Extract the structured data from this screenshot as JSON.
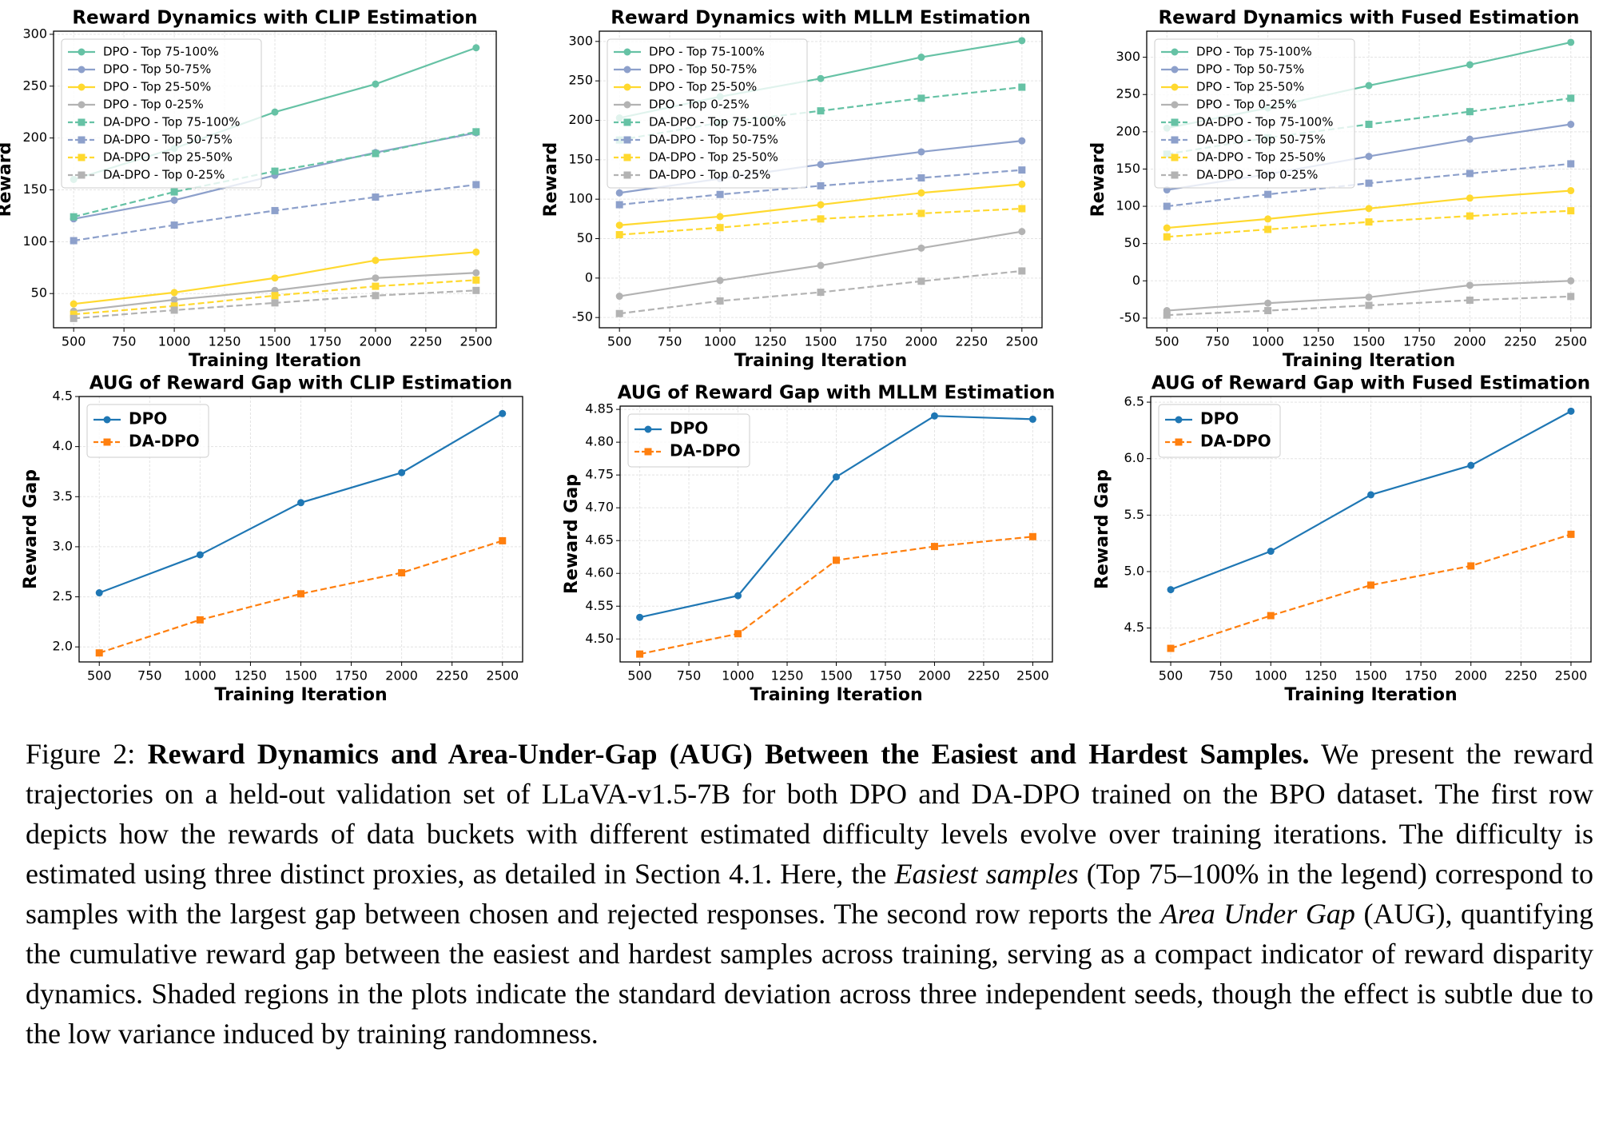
{
  "chart_data": [
    {
      "type": "line",
      "title": "Reward Dynamics with CLIP Estimation",
      "xlabel": "Training Iteration",
      "ylabel": "Reward",
      "x": [
        500,
        1000,
        1500,
        2000,
        2500
      ],
      "xlim": [
        400,
        2600
      ],
      "xticks": [
        500,
        750,
        1000,
        1250,
        1500,
        1750,
        2000,
        2250,
        2500
      ],
      "ylim": [
        17,
        303
      ],
      "yticks": [
        50,
        100,
        150,
        200,
        250,
        300
      ],
      "grid": true,
      "legend": "upper left",
      "series": [
        {
          "name": "DPO - Top 75-100%",
          "color": "#66c2a5",
          "linestyle": "solid",
          "marker": "circle",
          "values": [
            160,
            190,
            225,
            252,
            287
          ]
        },
        {
          "name": "DPO - Top 50-75%",
          "color": "#8da0cb",
          "linestyle": "solid",
          "marker": "circle",
          "values": [
            122,
            140,
            164,
            186,
            205
          ]
        },
        {
          "name": "DPO - Top 25-50%",
          "color": "#ffd92f",
          "linestyle": "solid",
          "marker": "circle",
          "values": [
            40,
            51,
            65,
            82,
            90
          ]
        },
        {
          "name": "DPO - Top 0-25%",
          "color": "#b3b3b3",
          "linestyle": "solid",
          "marker": "circle",
          "values": [
            33,
            44,
            53,
            65,
            70
          ]
        },
        {
          "name": "DA-DPO - Top 75-100%",
          "color": "#66c2a5",
          "linestyle": "dashed",
          "marker": "square",
          "values": [
            124,
            148,
            168,
            185,
            206
          ]
        },
        {
          "name": "DA-DPO - Top 50-75%",
          "color": "#8da0cb",
          "linestyle": "dashed",
          "marker": "square",
          "values": [
            101,
            116,
            130,
            143,
            155
          ]
        },
        {
          "name": "DA-DPO - Top 25-50%",
          "color": "#ffd92f",
          "linestyle": "dashed",
          "marker": "square",
          "values": [
            30,
            38,
            48,
            57,
            63
          ]
        },
        {
          "name": "DA-DPO - Top 0-25%",
          "color": "#b3b3b3",
          "linestyle": "dashed",
          "marker": "square",
          "values": [
            26,
            34,
            41,
            48,
            53
          ]
        }
      ]
    },
    {
      "type": "line",
      "title": "Reward Dynamics with MLLM Estimation",
      "xlabel": "Training Iteration",
      "ylabel": "Reward",
      "x": [
        500,
        1000,
        1500,
        2000,
        2500
      ],
      "xlim": [
        400,
        2600
      ],
      "xticks": [
        500,
        750,
        1000,
        1250,
        1500,
        1750,
        2000,
        2250,
        2500
      ],
      "ylim": [
        -63,
        313
      ],
      "yticks": [
        -50,
        0,
        50,
        100,
        150,
        200,
        250,
        300
      ],
      "grid": true,
      "legend": "upper left",
      "series": [
        {
          "name": "DPO - Top 75-100%",
          "color": "#66c2a5",
          "linestyle": "solid",
          "marker": "circle",
          "values": [
            203,
            230,
            253,
            280,
            301
          ]
        },
        {
          "name": "DPO - Top 50-75%",
          "color": "#8da0cb",
          "linestyle": "solid",
          "marker": "circle",
          "values": [
            108,
            126,
            144,
            160,
            174
          ]
        },
        {
          "name": "DPO - Top 25-50%",
          "color": "#ffd92f",
          "linestyle": "solid",
          "marker": "circle",
          "values": [
            67,
            78,
            93,
            108,
            119
          ]
        },
        {
          "name": "DPO - Top 0-25%",
          "color": "#b3b3b3",
          "linestyle": "solid",
          "marker": "circle",
          "values": [
            -23,
            -3,
            16,
            38,
            59
          ]
        },
        {
          "name": "DA-DPO - Top 75-100%",
          "color": "#66c2a5",
          "linestyle": "dashed",
          "marker": "square",
          "values": [
            175,
            197,
            212,
            228,
            242
          ]
        },
        {
          "name": "DA-DPO - Top 50-75%",
          "color": "#8da0cb",
          "linestyle": "dashed",
          "marker": "square",
          "values": [
            93,
            106,
            117,
            127,
            137
          ]
        },
        {
          "name": "DA-DPO - Top 25-50%",
          "color": "#ffd92f",
          "linestyle": "dashed",
          "marker": "square",
          "values": [
            55,
            64,
            75,
            82,
            88
          ]
        },
        {
          "name": "DA-DPO - Top 0-25%",
          "color": "#b3b3b3",
          "linestyle": "dashed",
          "marker": "square",
          "values": [
            -45,
            -29,
            -18,
            -4,
            9
          ]
        }
      ]
    },
    {
      "type": "line",
      "title": "Reward Dynamics with Fused Estimation",
      "xlabel": "Training Iteration",
      "ylabel": "Reward",
      "x": [
        500,
        1000,
        1500,
        2000,
        2500
      ],
      "xlim": [
        400,
        2600
      ],
      "xticks": [
        500,
        750,
        1000,
        1250,
        1500,
        1750,
        2000,
        2250,
        2500
      ],
      "ylim": [
        -63,
        335
      ],
      "yticks": [
        -50,
        0,
        50,
        100,
        150,
        200,
        250,
        300
      ],
      "grid": true,
      "legend": "upper left",
      "series": [
        {
          "name": "DPO - Top 75-100%",
          "color": "#66c2a5",
          "linestyle": "solid",
          "marker": "circle",
          "values": [
            205,
            232,
            262,
            290,
            320
          ]
        },
        {
          "name": "DPO - Top 50-75%",
          "color": "#8da0cb",
          "linestyle": "solid",
          "marker": "circle",
          "values": [
            122,
            143,
            167,
            190,
            210
          ]
        },
        {
          "name": "DPO - Top 25-50%",
          "color": "#ffd92f",
          "linestyle": "solid",
          "marker": "circle",
          "values": [
            71,
            83,
            97,
            111,
            121
          ]
        },
        {
          "name": "DPO - Top 0-25%",
          "color": "#b3b3b3",
          "linestyle": "solid",
          "marker": "circle",
          "values": [
            -40,
            -30,
            -22,
            -6,
            0
          ]
        },
        {
          "name": "DA-DPO - Top 75-100%",
          "color": "#66c2a5",
          "linestyle": "dashed",
          "marker": "square",
          "values": [
            170,
            192,
            210,
            227,
            245
          ]
        },
        {
          "name": "DA-DPO - Top 50-75%",
          "color": "#8da0cb",
          "linestyle": "dashed",
          "marker": "square",
          "values": [
            100,
            116,
            131,
            144,
            157
          ]
        },
        {
          "name": "DA-DPO - Top 25-50%",
          "color": "#ffd92f",
          "linestyle": "dashed",
          "marker": "square",
          "values": [
            59,
            69,
            79,
            87,
            94
          ]
        },
        {
          "name": "DA-DPO - Top 0-25%",
          "color": "#b3b3b3",
          "linestyle": "dashed",
          "marker": "square",
          "values": [
            -46,
            -40,
            -33,
            -26,
            -21
          ]
        }
      ]
    },
    {
      "type": "line",
      "title": "AUG of Reward Gap with CLIP Estimation",
      "xlabel": "Training Iteration",
      "ylabel": "Reward Gap",
      "x": [
        500,
        1000,
        1500,
        2000,
        2500
      ],
      "xlim": [
        400,
        2600
      ],
      "xticks": [
        500,
        750,
        1000,
        1250,
        1500,
        1750,
        2000,
        2250,
        2500
      ],
      "ylim": [
        1.85,
        4.5
      ],
      "yticks": [
        {
          "value": 2,
          "label": "2.0"
        },
        2.5,
        {
          "value": 3,
          "label": "3.0"
        },
        3.5,
        {
          "value": 4,
          "label": "4.0"
        },
        4.5
      ],
      "grid": true,
      "legend": "upper left",
      "series": [
        {
          "name": "DPO",
          "color": "#1f77b4",
          "linestyle": "solid",
          "marker": "circle",
          "values": [
            2.54,
            2.92,
            3.44,
            3.74,
            4.33
          ]
        },
        {
          "name": "DA-DPO",
          "color": "#ff7f0e",
          "linestyle": "dashed",
          "marker": "square",
          "values": [
            1.94,
            2.27,
            2.53,
            2.74,
            3.06
          ]
        }
      ]
    },
    {
      "type": "line",
      "title": "AUG of Reward Gap with MLLM Estimation",
      "xlabel": "Training Iteration",
      "ylabel": "Reward Gap",
      "x": [
        500,
        1000,
        1500,
        2000,
        2500
      ],
      "xlim": [
        400,
        2600
      ],
      "xticks": [
        500,
        750,
        1000,
        1250,
        1500,
        1750,
        2000,
        2250,
        2500
      ],
      "ylim": [
        4.465,
        4.855
      ],
      "yticks": [
        {
          "value": 4.5,
          "label": "4.50"
        },
        4.55,
        {
          "value": 4.6,
          "label": "4.60"
        },
        4.65,
        {
          "value": 4.7,
          "label": "4.70"
        },
        4.75,
        {
          "value": 4.8,
          "label": "4.80"
        },
        4.85
      ],
      "grid": true,
      "legend": "upper left",
      "series": [
        {
          "name": "DPO",
          "color": "#1f77b4",
          "linestyle": "solid",
          "marker": "circle",
          "values": [
            4.533,
            4.566,
            4.747,
            4.84,
            4.835
          ]
        },
        {
          "name": "DA-DPO",
          "color": "#ff7f0e",
          "linestyle": "dashed",
          "marker": "square",
          "values": [
            4.477,
            4.508,
            4.62,
            4.641,
            4.656
          ]
        }
      ]
    },
    {
      "type": "line",
      "title": "AUG of Reward Gap with Fused Estimation",
      "xlabel": "Training Iteration",
      "ylabel": "Reward Gap",
      "x": [
        500,
        1000,
        1500,
        2000,
        2500
      ],
      "xlim": [
        400,
        2600
      ],
      "xticks": [
        500,
        750,
        1000,
        1250,
        1500,
        1750,
        2000,
        2250,
        2500
      ],
      "ylim": [
        4.2,
        6.55
      ],
      "yticks": [
        4.5,
        {
          "value": 5,
          "label": "5.0"
        },
        5.5,
        {
          "value": 6,
          "label": "6.0"
        },
        6.5
      ],
      "grid": true,
      "legend": "upper left",
      "series": [
        {
          "name": "DPO",
          "color": "#1f77b4",
          "linestyle": "solid",
          "marker": "circle",
          "values": [
            4.84,
            5.18,
            5.68,
            5.94,
            6.42
          ]
        },
        {
          "name": "DA-DPO",
          "color": "#ff7f0e",
          "linestyle": "dashed",
          "marker": "square",
          "values": [
            4.32,
            4.61,
            4.88,
            5.05,
            5.33
          ]
        }
      ]
    }
  ],
  "caption": {
    "parts": [
      {
        "text": "Figure 2:",
        "style": "normal"
      },
      {
        "text": "Reward Dynamics and Area-Under-Gap (AUG) Between the Easiest and Hardest Samples.",
        "style": "bold"
      },
      {
        "text": "We present the reward trajectories on a held-out validation set of LLaVA-v1.5-7B for both DPO and DA-DPO trained on the BPO dataset. The first row depicts how the rewards of data buckets with different estimated difficulty levels evolve over training iterations. The difficulty is estimated using three distinct proxies, as detailed in Section 4.1. Here, the",
        "style": "normal"
      },
      {
        "text": "Easiest samples",
        "style": "italic"
      },
      {
        "text": "(Top 75–100% in the legend) correspond to samples with the largest gap between chosen and rejected responses. The second row reports the",
        "style": "normal"
      },
      {
        "text": "Area Under Gap",
        "style": "italic"
      },
      {
        "text": "(AUG), quantifying the cumulative reward gap between the easiest and hardest samples across training, serving as a compact indicator of reward disparity dynamics. Shaded regions in the plots indicate the standard deviation across three independent seeds, though the effect is subtle due to the low variance induced by training randomness.",
        "style": "normal"
      }
    ]
  }
}
